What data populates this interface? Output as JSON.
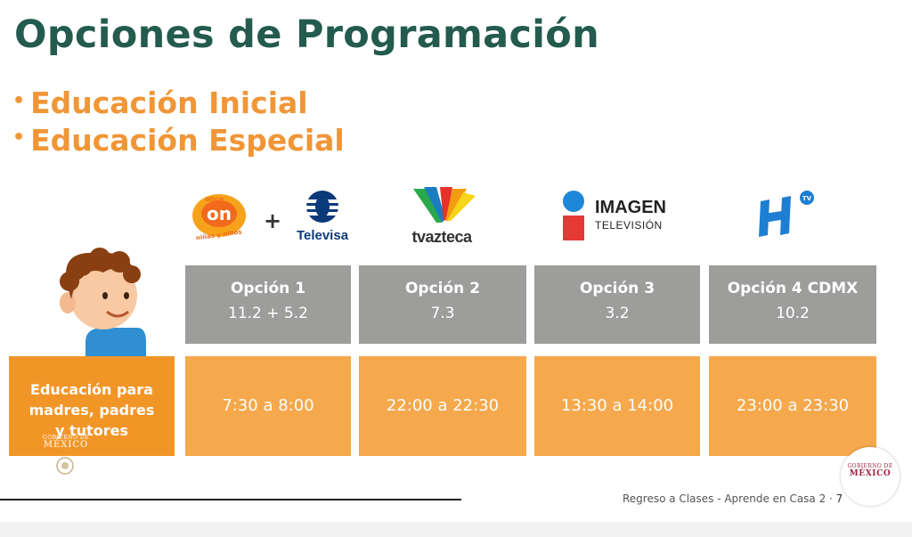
{
  "slide": {
    "title": "Opciones de Programación",
    "bullets": [
      "Educación Inicial",
      "Educación Especial"
    ]
  },
  "logos": {
    "once": "once niñas y niños",
    "televisa": "Televisa",
    "tvazteca": "tvazteca",
    "imagen_name": "IMAGEN",
    "imagen_sub": "TELEVISIÓN"
  },
  "options": [
    {
      "name": "Opción 1",
      "channel": "11.2  +  5.2",
      "time": "7:30 a 8:00"
    },
    {
      "name": "Opción 2",
      "channel": "7.3",
      "time": "22:00 a 22:30"
    },
    {
      "name": "Opción 3",
      "channel": "3.2",
      "time": "13:30 a 14:00"
    },
    {
      "name": "Opción 4 CDMX",
      "channel": "10.2",
      "time": "23:00 a 23:30"
    }
  ],
  "row_label": [
    "Educación para",
    "madres, padres",
    "y tutores"
  ],
  "gobierno": {
    "small": "GOBIERNO DE",
    "big": "MÉXICO"
  },
  "footer": {
    "text": "Regreso a Clases - Aprende en Casa 2 · ",
    "page": "7"
  },
  "colors": {
    "title": "#235b4e",
    "bullets": "#f09637",
    "header_gray": "#9d9d9c",
    "cell_orange": "#f6a84c",
    "label_orange": "#f29527"
  }
}
